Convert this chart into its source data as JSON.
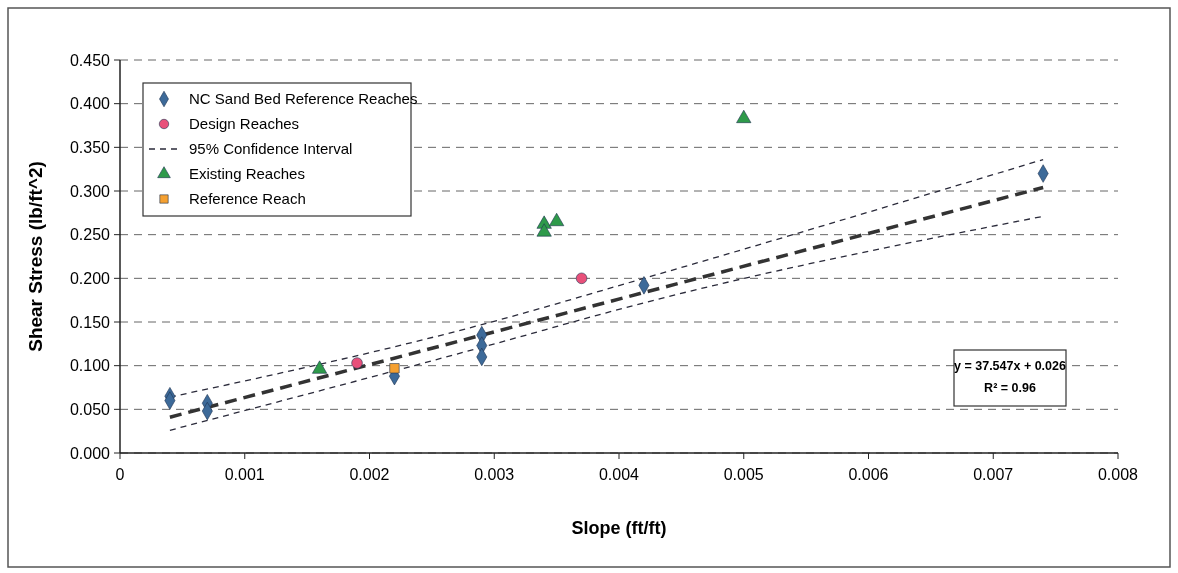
{
  "chart_data": {
    "type": "scatter",
    "xlabel": "Slope (ft/ft)",
    "ylabel": "Shear Stress (lb/ft^2)",
    "xlim": [
      0,
      0.008
    ],
    "xticks": [
      0,
      0.001,
      0.002,
      0.003,
      0.004,
      0.005,
      0.006,
      0.007,
      0.008
    ],
    "ylim": [
      0,
      0.45
    ],
    "yticks": [
      {
        "value": 0,
        "label": "0.000"
      },
      {
        "value": 0.05,
        "label": "0.050"
      },
      {
        "value": 0.1,
        "label": "0.100"
      },
      {
        "value": 0.15,
        "label": "0.150"
      },
      {
        "value": 0.2,
        "label": "0.200"
      },
      {
        "value": 0.25,
        "label": "0.250"
      },
      {
        "value": 0.3,
        "label": "0.300"
      },
      {
        "value": 0.35,
        "label": "0.350"
      },
      {
        "value": 0.4,
        "label": "0.400"
      },
      {
        "value": 0.45,
        "label": "0.450"
      }
    ],
    "grid": "y",
    "legend": "top left",
    "annotations": [
      "y = 37.547x + 0.026",
      "R² = 0.96"
    ],
    "series": [
      {
        "name": "NC Sand Bed Reference Reaches",
        "color": "#3d6a99",
        "marker": "diamond",
        "x": [
          0.0004,
          0.0004,
          0.0007,
          0.0007,
          0.0022,
          0.0029,
          0.0029,
          0.0029,
          0.0042,
          0.0074
        ],
        "values": [
          0.065,
          0.06,
          0.057,
          0.048,
          0.088,
          0.135,
          0.123,
          0.11,
          0.192,
          0.32
        ]
      },
      {
        "name": "Design Reaches",
        "color": "#e8507a",
        "marker": "circle",
        "x": [
          0.0019,
          0.0037
        ],
        "values": [
          0.103,
          0.2
        ]
      },
      {
        "type": "line",
        "name": "95% Confidence Interval",
        "color": "#2a2a3a",
        "marker": "none",
        "line_style": "dashed",
        "x": [
          0.0004,
          0.0029,
          0.0042,
          0.0074
        ],
        "values": [
          0.064,
          0.147,
          0.2,
          0.336
        ]
      },
      {
        "name": "Existing Reaches",
        "color": "#2e9a4a",
        "marker": "triangle",
        "x": [
          0.0016,
          0.0034,
          0.0034,
          0.0035,
          0.005
        ],
        "values": [
          0.096,
          0.262,
          0.253,
          0.265,
          0.383
        ]
      },
      {
        "name": "Reference Reach",
        "color": "#f5a030",
        "marker": "square",
        "x": [
          0.0022
        ],
        "values": [
          0.097
        ]
      },
      {
        "type": "line",
        "color": "#2a2a3a",
        "marker": "none",
        "line_style": "dashed",
        "x": [
          0.0004,
          0.0029,
          0.0042,
          0.0074
        ],
        "values": [
          0.026,
          0.121,
          0.172,
          0.271
        ]
      },
      {
        "type": "line",
        "color": "#333333",
        "marker": "none",
        "line_style": "dashed",
        "x": [
          0.0004,
          0.0074
        ],
        "values": [
          0.041,
          0.304
        ]
      }
    ]
  }
}
